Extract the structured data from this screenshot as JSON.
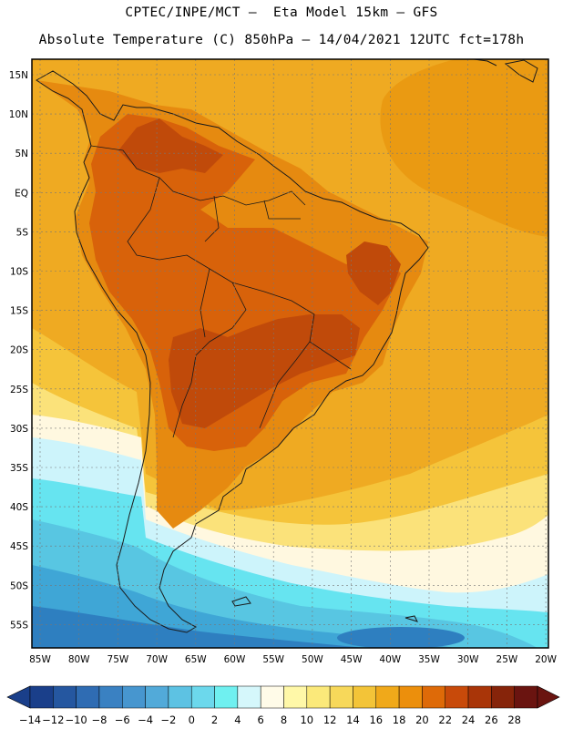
{
  "header": {
    "line1": "CPTEC/INPE/MCT –  Eta Model 15km – GFS",
    "line2": "Absolute Temperature (C) 850hPa – 14/04/2021 12UTC fct=178h"
  },
  "axes": {
    "lat_labels": [
      "15N",
      "10N",
      "5N",
      "EQ",
      "5S",
      "10S",
      "15S",
      "20S",
      "25S",
      "30S",
      "35S",
      "40S",
      "45S",
      "50S",
      "55S"
    ],
    "lon_labels": [
      "85W",
      "80W",
      "75W",
      "70W",
      "65W",
      "60W",
      "55W",
      "50W",
      "45W",
      "40W",
      "35W",
      "30W",
      "25W",
      "20W"
    ]
  },
  "colorbar": {
    "labels": [
      "-14",
      "-12",
      "-10",
      "-8",
      "-6",
      "-4",
      "-2",
      "0",
      "2",
      "4",
      "6",
      "8",
      "10",
      "12",
      "14",
      "16",
      "18",
      "20",
      "22",
      "24",
      "26",
      "28"
    ],
    "colors": [
      "#1a3f8a",
      "#2557a0",
      "#2f6cb3",
      "#3a81c2",
      "#4796cf",
      "#52aad9",
      "#5dc2e3",
      "#6cd8ec",
      "#6ff0f0",
      "#d5f7fb",
      "#fffbe8",
      "#fff8a8",
      "#fbe97a",
      "#f7d85a",
      "#f3c438",
      "#f0a91a",
      "#ec8f0c",
      "#de6a08",
      "#c84a0a",
      "#a93508",
      "#86240a",
      "#6a1410"
    ]
  },
  "map": {
    "colors": {
      "ocean_n": "#efaa22",
      "ocean_n_dark": "#ea9a12",
      "land_warm": "#e68a10",
      "land_hot": "#d8620a",
      "land_hottest": "#c04a0a",
      "mid_yellow": "#f5c43a",
      "light_yellow": "#fbe27a",
      "cream": "#fff8e0",
      "cyan_light": "#cdf4fb",
      "cyan": "#66e4f0",
      "blue_light": "#58c6e2",
      "blue_mid": "#3fa6d6",
      "blue_deep": "#2e7fc0",
      "outline": "#1a1a1a"
    }
  }
}
